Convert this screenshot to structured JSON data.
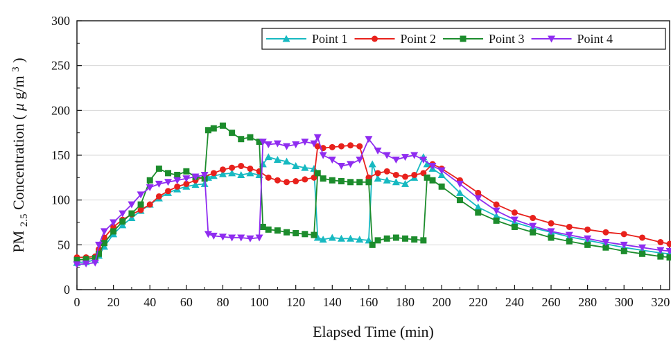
{
  "chart_data": {
    "type": "line",
    "xlabel": "Elapsed Time (min)",
    "ylabel": {
      "prefix": "PM",
      "sub": "2.5",
      "mid": " Concentration (",
      "mu": "μ",
      "unit": "g/m",
      "sup": "3",
      "suffix": ")"
    },
    "xlim": [
      0,
      325
    ],
    "ylim": [
      0,
      300
    ],
    "xticks": [
      0,
      20,
      40,
      60,
      80,
      100,
      120,
      140,
      160,
      180,
      200,
      220,
      240,
      260,
      280,
      300,
      320
    ],
    "xtick_labels": [
      "0",
      "20",
      "40",
      "60",
      "80",
      "100",
      "120",
      "140",
      "160",
      "180",
      "200",
      "220",
      "240",
      "260",
      "280",
      "300",
      "320"
    ],
    "yticks": [
      0,
      50,
      100,
      150,
      200,
      250,
      300
    ],
    "ytick_labels": [
      "0",
      "50",
      "100",
      "150",
      "200",
      "250",
      "300"
    ],
    "grid": true,
    "legend": {
      "placement": "top-right",
      "orientation": "horizontal"
    },
    "series": [
      {
        "name": "Point 1",
        "color": "#17b9c1",
        "marker": "triangle-up",
        "x": [
          0,
          5,
          10,
          12,
          15,
          20,
          25,
          30,
          35,
          40,
          45,
          50,
          55,
          60,
          65,
          70,
          72,
          75,
          80,
          85,
          90,
          95,
          100,
          102,
          105,
          110,
          115,
          120,
          125,
          130,
          132,
          135,
          140,
          145,
          150,
          155,
          160,
          162,
          165,
          170,
          175,
          180,
          185,
          190,
          192,
          195,
          200,
          210,
          220,
          230,
          240,
          250,
          260,
          270,
          280,
          290,
          300,
          310,
          320,
          325
        ],
        "y": [
          30,
          31,
          33,
          38,
          48,
          62,
          72,
          80,
          88,
          95,
          102,
          108,
          112,
          115,
          117,
          118,
          125,
          127,
          129,
          130,
          128,
          130,
          128,
          140,
          148,
          145,
          143,
          138,
          136,
          135,
          58,
          56,
          58,
          57,
          57,
          56,
          55,
          140,
          124,
          122,
          120,
          118,
          125,
          148,
          140,
          135,
          128,
          108,
          92,
          82,
          75,
          69,
          64,
          59,
          55,
          51,
          47,
          44,
          41,
          40
        ]
      },
      {
        "name": "Point 2",
        "color": "#e8211c",
        "marker": "circle",
        "x": [
          0,
          5,
          10,
          12,
          15,
          20,
          25,
          30,
          35,
          40,
          45,
          50,
          55,
          60,
          65,
          70,
          75,
          80,
          85,
          90,
          95,
          100,
          105,
          110,
          115,
          120,
          125,
          130,
          132,
          135,
          140,
          145,
          150,
          155,
          160,
          165,
          170,
          175,
          180,
          185,
          190,
          195,
          200,
          210,
          220,
          230,
          240,
          250,
          260,
          270,
          280,
          290,
          300,
          310,
          320,
          325
        ],
        "y": [
          36,
          36,
          37,
          45,
          58,
          70,
          78,
          84,
          89,
          95,
          104,
          110,
          115,
          118,
          122,
          126,
          130,
          134,
          136,
          138,
          135,
          132,
          125,
          122,
          120,
          121,
          123,
          125,
          160,
          158,
          159,
          160,
          161,
          160,
          125,
          130,
          132,
          128,
          126,
          128,
          130,
          140,
          135,
          122,
          108,
          95,
          86,
          80,
          74,
          70,
          67,
          64,
          62,
          58,
          53,
          51
        ]
      },
      {
        "name": "Point 3",
        "color": "#1c8c2c",
        "marker": "square",
        "x": [
          0,
          5,
          10,
          12,
          15,
          20,
          25,
          30,
          35,
          40,
          45,
          50,
          55,
          60,
          65,
          70,
          72,
          75,
          80,
          85,
          90,
          95,
          100,
          102,
          105,
          110,
          115,
          120,
          125,
          130,
          132,
          135,
          140,
          145,
          150,
          155,
          160,
          162,
          165,
          170,
          175,
          180,
          185,
          190,
          192,
          195,
          200,
          210,
          220,
          230,
          240,
          250,
          260,
          270,
          280,
          290,
          300,
          310,
          320,
          325
        ],
        "y": [
          33,
          34,
          35,
          40,
          52,
          65,
          76,
          85,
          95,
          122,
          135,
          130,
          128,
          132,
          126,
          124,
          178,
          180,
          183,
          175,
          168,
          170,
          165,
          70,
          67,
          66,
          64,
          63,
          62,
          61,
          130,
          124,
          122,
          121,
          120,
          120,
          120,
          50,
          55,
          57,
          58,
          57,
          56,
          55,
          125,
          122,
          115,
          100,
          86,
          77,
          70,
          64,
          58,
          54,
          50,
          47,
          43,
          40,
          37,
          36
        ]
      },
      {
        "name": "Point 4",
        "color": "#8f2cf0",
        "marker": "triangle-down",
        "x": [
          0,
          5,
          10,
          12,
          15,
          20,
          25,
          30,
          35,
          40,
          45,
          50,
          55,
          60,
          65,
          70,
          72,
          75,
          80,
          85,
          90,
          95,
          100,
          102,
          105,
          110,
          115,
          120,
          125,
          130,
          132,
          135,
          140,
          145,
          150,
          155,
          160,
          165,
          170,
          175,
          180,
          185,
          190,
          195,
          200,
          210,
          220,
          230,
          240,
          250,
          260,
          270,
          280,
          290,
          300,
          310,
          320,
          325
        ],
        "y": [
          28,
          29,
          30,
          50,
          65,
          75,
          85,
          95,
          106,
          114,
          118,
          120,
          122,
          124,
          126,
          128,
          62,
          60,
          59,
          58,
          58,
          57,
          58,
          165,
          162,
          163,
          160,
          162,
          165,
          163,
          170,
          150,
          145,
          138,
          140,
          145,
          168,
          155,
          150,
          145,
          148,
          150,
          145,
          138,
          133,
          118,
          102,
          88,
          78,
          71,
          65,
          61,
          57,
          53,
          50,
          47,
          44,
          43
        ]
      }
    ]
  }
}
